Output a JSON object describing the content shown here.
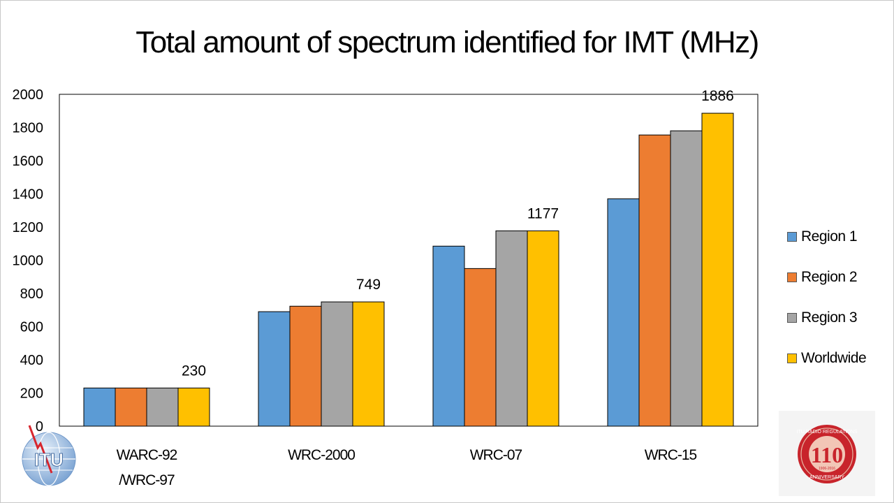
{
  "chart_data": {
    "type": "bar",
    "title": "Total amount of spectrum identified for IMT (MHz)",
    "categories": [
      [
        "WARC-92",
        "/WRC-97"
      ],
      [
        "WRC-2000"
      ],
      [
        "WRC-07"
      ],
      [
        "WRC-15"
      ]
    ],
    "series": [
      {
        "name": "Region 1",
        "color": "#5b9bd5",
        "values": [
          230,
          690,
          1085,
          1370
        ]
      },
      {
        "name": "Region 2",
        "color": "#ed7d31",
        "values": [
          230,
          723,
          950,
          1755
        ]
      },
      {
        "name": "Region 3",
        "color": "#a5a5a5",
        "values": [
          230,
          749,
          1177,
          1780
        ]
      },
      {
        "name": "Worldwide",
        "color": "#ffc000",
        "values": [
          230,
          749,
          1177,
          1886
        ]
      }
    ],
    "data_labels": [
      {
        "category_index": 0,
        "series_index": 3,
        "text": "230"
      },
      {
        "category_index": 1,
        "series_index": 3,
        "text": "749"
      },
      {
        "category_index": 2,
        "series_index": 3,
        "text": "1177"
      },
      {
        "category_index": 3,
        "series_index": 3,
        "text": "1886"
      }
    ],
    "ylim": [
      0,
      2000
    ],
    "yticks": [
      0,
      200,
      400,
      600,
      800,
      1000,
      1200,
      1400,
      1600,
      1800,
      2000
    ],
    "xlabel": "",
    "ylabel": "",
    "grid": false,
    "legend_position": "right"
  },
  "logos": {
    "left": "ITU",
    "right_number": "110",
    "right_ring_text": "ITU RADIO REGULATIONS",
    "right_bottom_text": "ANNIVERSARY",
    "right_years": "1906-2016"
  }
}
